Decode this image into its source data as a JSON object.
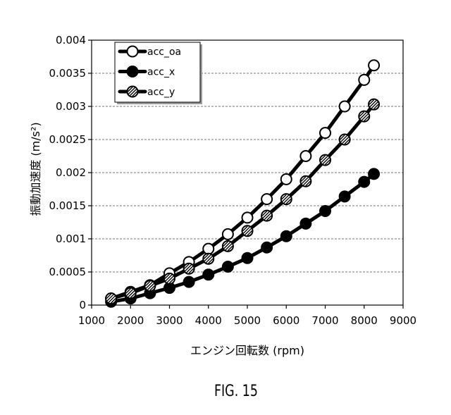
{
  "figure": {
    "label": "FIG. 15"
  },
  "chart_data": {
    "type": "line",
    "xlabel": "エンジン回転数 (rpm)",
    "ylabel": "振動加速度 (m/s²)",
    "xlim": [
      1000,
      9000
    ],
    "ylim": [
      0,
      0.004
    ],
    "x_ticks": [
      1000,
      2000,
      3000,
      4000,
      5000,
      6000,
      7000,
      8000,
      9000
    ],
    "x_tick_labels": [
      "1000",
      "2000",
      "3000",
      "4000",
      "5000",
      "6000",
      "7000",
      "8000",
      "9000"
    ],
    "y_ticks": [
      0,
      0.0005,
      0.001,
      0.0015,
      0.002,
      0.0025,
      0.003,
      0.0035,
      0.004
    ],
    "y_tick_labels": [
      "0",
      "0.0005",
      "0.001",
      "0.0015",
      "0.002",
      "0.0025",
      "0.003",
      "0.0035",
      "0.004"
    ],
    "grid": "horizontal",
    "legend_position": "top-left",
    "line_color": "#000000",
    "x": [
      1500,
      2000,
      2500,
      3000,
      3500,
      4000,
      4500,
      5000,
      5500,
      6000,
      6500,
      7000,
      7500,
      8000,
      8250
    ],
    "series": [
      {
        "name": "acc_oa",
        "marker": "open-circle",
        "values": [
          0.0001,
          0.0002,
          0.0003,
          0.00048,
          0.00065,
          0.00085,
          0.00107,
          0.00132,
          0.0016,
          0.0019,
          0.00225,
          0.0026,
          0.003,
          0.0034,
          0.00362
        ]
      },
      {
        "name": "acc_x",
        "marker": "filled-circle",
        "values": [
          5e-05,
          0.0001,
          0.00018,
          0.00026,
          0.00035,
          0.00046,
          0.00058,
          0.00071,
          0.00087,
          0.00104,
          0.00123,
          0.00142,
          0.00164,
          0.00186,
          0.00198
        ]
      },
      {
        "name": "acc_y",
        "marker": "hatched-circle",
        "values": [
          0.0001,
          0.00018,
          0.00029,
          0.0004,
          0.00055,
          0.0007,
          0.00089,
          0.00112,
          0.00135,
          0.0016,
          0.00187,
          0.00219,
          0.0025,
          0.00285,
          0.00303
        ]
      }
    ]
  }
}
